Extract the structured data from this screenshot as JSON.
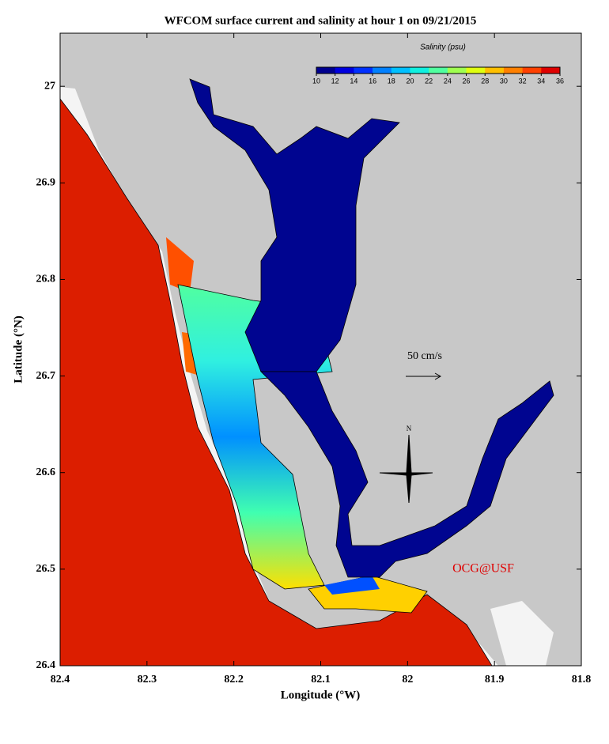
{
  "chart_data": {
    "type": "map",
    "title": "WFCOM surface current and salinity at hour 1 on 09/21/2015",
    "x_label": "Longitude (°W)",
    "y_label": "Latitude (°N)",
    "xlim": [
      82.4,
      81.8
    ],
    "xticks": [
      82.4,
      82.3,
      82.2,
      82.1,
      82.0,
      81.9,
      81.8
    ],
    "ylim": [
      26.4,
      27.055
    ],
    "yticks": [
      26.4,
      26.5,
      26.6,
      26.7,
      26.8,
      26.9,
      27.0
    ],
    "colorbar": {
      "title": "Salinity (psu)",
      "lim": [
        10,
        36
      ],
      "ticks": [
        10,
        12,
        14,
        16,
        18,
        20,
        22,
        24,
        26,
        28,
        30,
        32,
        34,
        36
      ],
      "colors": [
        "#00008f",
        "#0000df",
        "#0030ff",
        "#0080ff",
        "#00c0ff",
        "#10f0e0",
        "#50ffa0",
        "#a0ff50",
        "#e0ff10",
        "#ffc000",
        "#ff8000",
        "#ff4000",
        "#df0000"
      ]
    },
    "scale_label": "50 cm/s",
    "compass_label": "N",
    "credit": "OCG@USF"
  }
}
